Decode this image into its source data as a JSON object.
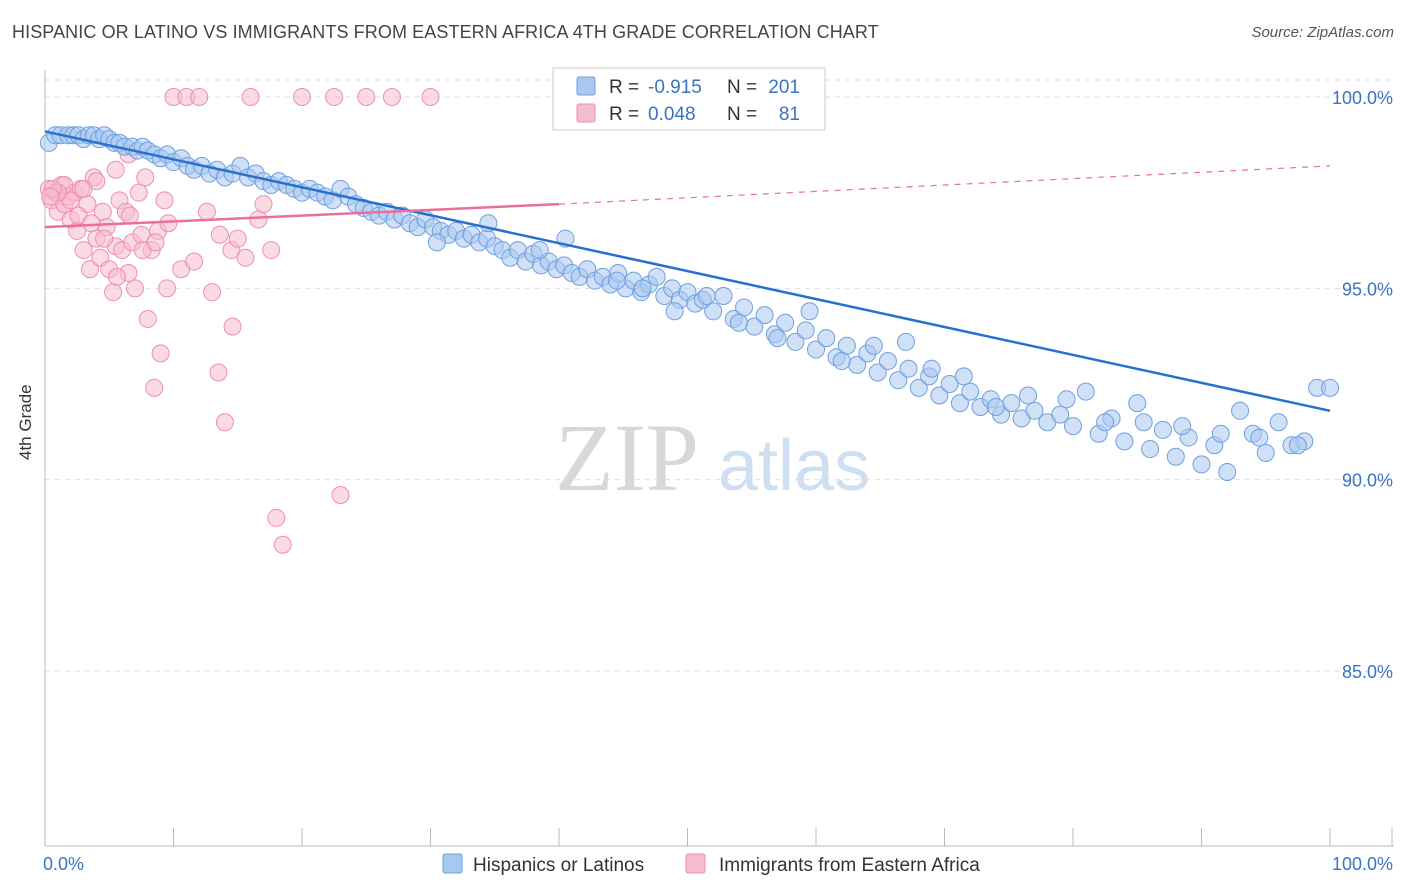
{
  "header": {
    "title": "HISPANIC OR LATINO VS IMMIGRANTS FROM EASTERN AFRICA 4TH GRADE CORRELATION CHART",
    "source": "Source: ZipAtlas.com"
  },
  "watermark": {
    "zip": "ZIP",
    "atlas": "atlas"
  },
  "colors": {
    "blue_fill": "#a9c8f0",
    "blue_stroke": "#6f9fe0",
    "blue_line": "#2870d0",
    "pink_fill": "#f6bccd",
    "pink_stroke": "#ef8fac",
    "pink_line": "#e8709a",
    "tick_label": "#3b73c4",
    "grid": "#dddddd"
  },
  "legend": {
    "rows": [
      {
        "r_label": "R =",
        "r_value": "-0.915",
        "n_label": "N =",
        "n_value": "201"
      },
      {
        "r_label": "R =",
        "r_value": "0.048",
        "n_label": "N =",
        "n_value": "81"
      }
    ]
  },
  "chart_data": {
    "type": "scatter",
    "title": "HISPANIC OR LATINO VS IMMIGRANTS FROM EASTERN AFRICA 4TH GRADE CORRELATION CHART",
    "xlabel": "",
    "ylabel": "4th Grade",
    "xlim": [
      0,
      100
    ],
    "ylim": [
      80.0,
      101.0
    ],
    "x_ticks": [
      {
        "value": 0,
        "label": "0.0%"
      },
      {
        "value": 100,
        "label": "100.0%"
      }
    ],
    "y_ticks": [
      {
        "value": 100,
        "label": "100.0%"
      },
      {
        "value": 95,
        "label": "95.0%"
      },
      {
        "value": 90,
        "label": "90.0%"
      },
      {
        "value": 85,
        "label": "85.0%"
      }
    ],
    "grid": true,
    "legend_position": "bottom",
    "series": [
      {
        "name": "Hispanics or Latinos",
        "r": -0.915,
        "n": 201,
        "trend": {
          "x": [
            0,
            100
          ],
          "y": [
            99.1,
            91.8
          ]
        },
        "points": [
          [
            0.3,
            98.8
          ],
          [
            0.8,
            99.0
          ],
          [
            1.2,
            99.0
          ],
          [
            1.8,
            99.0
          ],
          [
            2.2,
            99.0
          ],
          [
            2.6,
            99.0
          ],
          [
            3.0,
            98.9
          ],
          [
            3.4,
            99.0
          ],
          [
            3.8,
            99.0
          ],
          [
            4.2,
            98.9
          ],
          [
            4.6,
            99.0
          ],
          [
            5.0,
            98.9
          ],
          [
            5.4,
            98.8
          ],
          [
            5.8,
            98.8
          ],
          [
            6.2,
            98.7
          ],
          [
            6.8,
            98.7
          ],
          [
            7.2,
            98.6
          ],
          [
            7.6,
            98.7
          ],
          [
            8.0,
            98.6
          ],
          [
            8.5,
            98.5
          ],
          [
            9.0,
            98.4
          ],
          [
            9.5,
            98.5
          ],
          [
            10.0,
            98.3
          ],
          [
            10.6,
            98.4
          ],
          [
            11.1,
            98.2
          ],
          [
            11.6,
            98.1
          ],
          [
            12.2,
            98.2
          ],
          [
            12.8,
            98.0
          ],
          [
            13.4,
            98.1
          ],
          [
            14.0,
            97.9
          ],
          [
            14.6,
            98.0
          ],
          [
            15.2,
            98.2
          ],
          [
            15.8,
            97.9
          ],
          [
            16.4,
            98.0
          ],
          [
            17.0,
            97.8
          ],
          [
            17.6,
            97.7
          ],
          [
            18.2,
            97.8
          ],
          [
            18.8,
            97.7
          ],
          [
            19.4,
            97.6
          ],
          [
            20.0,
            97.5
          ],
          [
            20.6,
            97.6
          ],
          [
            21.2,
            97.5
          ],
          [
            21.8,
            97.4
          ],
          [
            22.4,
            97.3
          ],
          [
            23.0,
            97.6
          ],
          [
            23.6,
            97.4
          ],
          [
            24.2,
            97.2
          ],
          [
            24.8,
            97.1
          ],
          [
            25.4,
            97.0
          ],
          [
            26.0,
            96.9
          ],
          [
            26.6,
            97.0
          ],
          [
            27.2,
            96.8
          ],
          [
            27.8,
            96.9
          ],
          [
            28.4,
            96.7
          ],
          [
            29.0,
            96.6
          ],
          [
            29.6,
            96.8
          ],
          [
            30.2,
            96.6
          ],
          [
            30.8,
            96.5
          ],
          [
            31.4,
            96.4
          ],
          [
            32.0,
            96.5
          ],
          [
            32.6,
            96.3
          ],
          [
            33.2,
            96.4
          ],
          [
            33.8,
            96.2
          ],
          [
            34.4,
            96.3
          ],
          [
            35.0,
            96.1
          ],
          [
            35.6,
            96.0
          ],
          [
            36.2,
            95.8
          ],
          [
            36.8,
            96.0
          ],
          [
            37.4,
            95.7
          ],
          [
            38.0,
            95.9
          ],
          [
            38.6,
            95.6
          ],
          [
            39.2,
            95.7
          ],
          [
            39.8,
            95.5
          ],
          [
            40.4,
            95.6
          ],
          [
            41.0,
            95.4
          ],
          [
            41.6,
            95.3
          ],
          [
            42.2,
            95.5
          ],
          [
            42.8,
            95.2
          ],
          [
            43.4,
            95.3
          ],
          [
            44.0,
            95.1
          ],
          [
            44.6,
            95.4
          ],
          [
            45.2,
            95.0
          ],
          [
            45.8,
            95.2
          ],
          [
            46.4,
            94.9
          ],
          [
            47.0,
            95.1
          ],
          [
            47.6,
            95.3
          ],
          [
            48.2,
            94.8
          ],
          [
            48.8,
            95.0
          ],
          [
            49.4,
            94.7
          ],
          [
            50.0,
            94.9
          ],
          [
            50.6,
            94.6
          ],
          [
            51.2,
            94.7
          ],
          [
            52.0,
            94.4
          ],
          [
            52.8,
            94.8
          ],
          [
            53.6,
            94.2
          ],
          [
            54.4,
            94.5
          ],
          [
            55.2,
            94.0
          ],
          [
            56.0,
            94.3
          ],
          [
            56.8,
            93.8
          ],
          [
            57.6,
            94.1
          ],
          [
            58.4,
            93.6
          ],
          [
            59.2,
            93.9
          ],
          [
            60.0,
            93.4
          ],
          [
            60.8,
            93.7
          ],
          [
            61.6,
            93.2
          ],
          [
            62.4,
            93.5
          ],
          [
            63.2,
            93.0
          ],
          [
            64.0,
            93.3
          ],
          [
            64.8,
            92.8
          ],
          [
            65.6,
            93.1
          ],
          [
            66.4,
            92.6
          ],
          [
            67.2,
            92.9
          ],
          [
            68.0,
            92.4
          ],
          [
            68.8,
            92.7
          ],
          [
            69.6,
            92.2
          ],
          [
            70.4,
            92.5
          ],
          [
            71.2,
            92.0
          ],
          [
            72.0,
            92.3
          ],
          [
            72.8,
            91.9
          ],
          [
            73.6,
            92.1
          ],
          [
            74.4,
            91.7
          ],
          [
            75.2,
            92.0
          ],
          [
            76.0,
            91.6
          ],
          [
            77.0,
            91.8
          ],
          [
            78.0,
            91.5
          ],
          [
            79.0,
            91.7
          ],
          [
            80.0,
            91.4
          ],
          [
            81.0,
            92.3
          ],
          [
            82.0,
            91.2
          ],
          [
            83.0,
            91.6
          ],
          [
            84.0,
            91.0
          ],
          [
            85.0,
            92.0
          ],
          [
            86.0,
            90.8
          ],
          [
            87.0,
            91.3
          ],
          [
            88.0,
            90.6
          ],
          [
            89.0,
            91.1
          ],
          [
            90.0,
            90.4
          ],
          [
            91.0,
            90.9
          ],
          [
            92.0,
            90.2
          ],
          [
            93.0,
            91.8
          ],
          [
            94.0,
            91.2
          ],
          [
            95.0,
            90.7
          ],
          [
            96.0,
            91.5
          ],
          [
            97.0,
            90.9
          ],
          [
            98.0,
            91.0
          ],
          [
            99.0,
            92.4
          ],
          [
            100.0,
            92.4
          ],
          [
            30.5,
            96.2
          ],
          [
            34.5,
            96.7
          ],
          [
            38.5,
            96.0
          ],
          [
            40.5,
            96.3
          ],
          [
            44.5,
            95.2
          ],
          [
            46.5,
            95.0
          ],
          [
            49.0,
            94.4
          ],
          [
            51.5,
            94.8
          ],
          [
            54.0,
            94.1
          ],
          [
            57.0,
            93.7
          ],
          [
            59.5,
            94.4
          ],
          [
            62.0,
            93.1
          ],
          [
            64.5,
            93.5
          ],
          [
            67.0,
            93.6
          ],
          [
            69.0,
            92.9
          ],
          [
            71.5,
            92.7
          ],
          [
            74.0,
            91.9
          ],
          [
            76.5,
            92.2
          ],
          [
            79.5,
            92.1
          ],
          [
            82.5,
            91.5
          ],
          [
            85.5,
            91.5
          ],
          [
            88.5,
            91.4
          ],
          [
            91.5,
            91.2
          ],
          [
            94.5,
            91.1
          ],
          [
            97.5,
            90.9
          ]
        ]
      },
      {
        "name": "Immigrants from Eastern Africa",
        "r": 0.048,
        "n": 81,
        "trend": {
          "x": [
            0,
            40
          ],
          "y": [
            96.6,
            97.2
          ],
          "dashed_to": [
            100,
            98.2
          ]
        },
        "points": [
          [
            0.3,
            97.6
          ],
          [
            0.5,
            97.3
          ],
          [
            0.8,
            97.5
          ],
          [
            1.0,
            97.0
          ],
          [
            1.3,
            97.7
          ],
          [
            1.5,
            97.2
          ],
          [
            1.8,
            97.4
          ],
          [
            2.0,
            96.8
          ],
          [
            2.3,
            97.5
          ],
          [
            2.5,
            96.5
          ],
          [
            2.8,
            97.6
          ],
          [
            3.0,
            96.0
          ],
          [
            3.3,
            97.2
          ],
          [
            3.5,
            95.5
          ],
          [
            3.8,
            97.9
          ],
          [
            4.0,
            96.3
          ],
          [
            4.3,
            95.8
          ],
          [
            4.5,
            97.0
          ],
          [
            4.8,
            96.6
          ],
          [
            5.0,
            95.5
          ],
          [
            5.3,
            94.9
          ],
          [
            5.5,
            96.1
          ],
          [
            5.8,
            97.3
          ],
          [
            6.0,
            96.0
          ],
          [
            6.3,
            97.0
          ],
          [
            6.5,
            95.4
          ],
          [
            6.8,
            96.2
          ],
          [
            7.0,
            95.0
          ],
          [
            7.3,
            97.5
          ],
          [
            7.5,
            96.4
          ],
          [
            7.8,
            97.9
          ],
          [
            8.0,
            94.2
          ],
          [
            8.3,
            96.0
          ],
          [
            8.5,
            92.4
          ],
          [
            8.8,
            96.5
          ],
          [
            9.0,
            93.3
          ],
          [
            9.3,
            97.3
          ],
          [
            9.5,
            95.0
          ],
          [
            10.0,
            100.0
          ],
          [
            11.0,
            100.0
          ],
          [
            12.0,
            100.0
          ],
          [
            13.0,
            94.9
          ],
          [
            13.5,
            92.8
          ],
          [
            14.0,
            91.5
          ],
          [
            14.5,
            96.0
          ],
          [
            15.0,
            96.3
          ],
          [
            16.0,
            100.0
          ],
          [
            17.0,
            97.2
          ],
          [
            18.0,
            89.0
          ],
          [
            18.5,
            88.3
          ],
          [
            20.0,
            100.0
          ],
          [
            22.5,
            100.0
          ],
          [
            23.0,
            89.6
          ],
          [
            25.0,
            100.0
          ],
          [
            27.0,
            100.0
          ],
          [
            30.0,
            100.0
          ],
          [
            5.5,
            98.1
          ],
          [
            6.5,
            98.5
          ],
          [
            4.0,
            97.8
          ],
          [
            3.0,
            97.6
          ],
          [
            2.0,
            97.3
          ],
          [
            1.5,
            97.7
          ],
          [
            1.0,
            97.5
          ],
          [
            0.6,
            97.6
          ],
          [
            0.4,
            97.4
          ],
          [
            2.6,
            96.9
          ],
          [
            3.6,
            96.7
          ],
          [
            4.6,
            96.3
          ],
          [
            5.6,
            95.3
          ],
          [
            6.6,
            96.9
          ],
          [
            7.6,
            96.0
          ],
          [
            8.6,
            96.2
          ],
          [
            9.6,
            96.7
          ],
          [
            10.6,
            95.5
          ],
          [
            11.6,
            95.7
          ],
          [
            12.6,
            97.0
          ],
          [
            13.6,
            96.4
          ],
          [
            14.6,
            94.0
          ],
          [
            15.6,
            95.8
          ],
          [
            16.6,
            96.8
          ],
          [
            17.6,
            96.0
          ]
        ]
      }
    ]
  },
  "legend_bottom": {
    "items": [
      {
        "label": "Hispanics or Latinos"
      },
      {
        "label": "Immigrants from Eastern Africa"
      }
    ]
  }
}
